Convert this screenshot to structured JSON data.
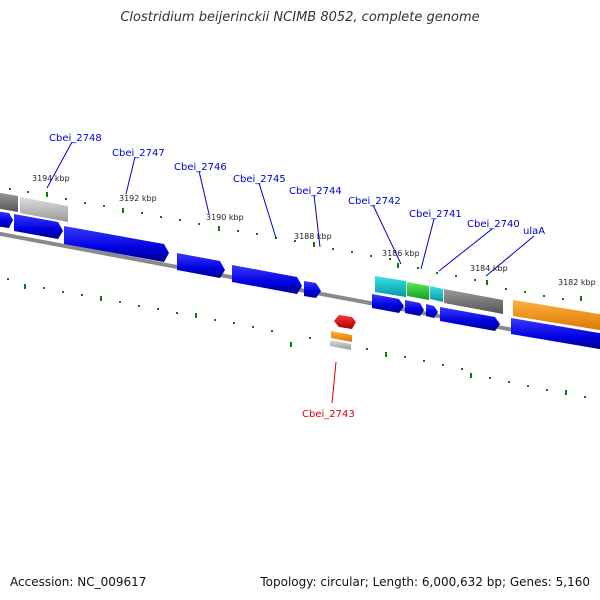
{
  "title": "Clostridium beijerinckii NCIMB 8052, complete genome",
  "footer": {
    "accession": "Accession: NC_009617",
    "topology": "Topology: circular; Length: 6,000,632 bp; Genes: 5,160"
  },
  "colors": {
    "forward_gene": "#0000ee",
    "reverse_gene": "#ff8800",
    "highlight_gene": "#ee0000",
    "cyan_gene": "#00c0c8",
    "green_gene": "#22cc33",
    "gray_gene": "#777777",
    "light_gray_gene": "#bbbbbb",
    "tick": "#117711",
    "backbone": "#808080",
    "label_blue": "#0000cc",
    "label_red": "#dd0000"
  },
  "ticks": [
    "3194 kbp",
    "3192 kbp",
    "3190 kbp",
    "3188 kbp",
    "3186 kbp",
    "3184 kbp",
    "3182 kbp"
  ],
  "genes": [
    "Cbei_2748",
    "Cbei_2747",
    "Cbei_2746",
    "Cbei_2745",
    "Cbei_2744",
    "Cbei_2742",
    "Cbei_2741",
    "Cbei_2740",
    "ulaA",
    "Cbei_2743"
  ]
}
